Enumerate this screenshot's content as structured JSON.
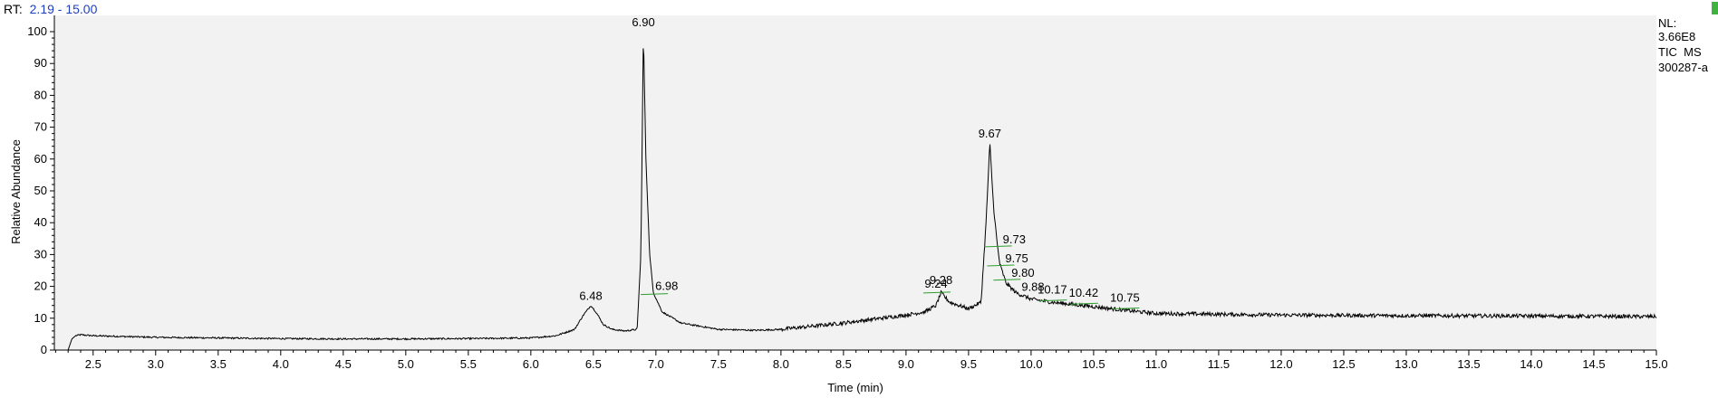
{
  "header": {
    "rt_label": "RT:",
    "rt_range": "2.19 - 15.00"
  },
  "info_box": {
    "line1": "NL:",
    "line2": "3.66E8",
    "line3": "TIC  MS",
    "line4": "300287-a"
  },
  "colors": {
    "plot_background": "#f2f2f2",
    "trace": "#000000",
    "integration_marker": "#2e9e2e",
    "rt_value": "#1f3fbf",
    "corner_marker": "#3fb33f"
  },
  "chart_data": {
    "type": "line",
    "title": "",
    "xlabel": "Time (min)",
    "ylabel": "Relative Abundance",
    "xlim": [
      2.19,
      15.0
    ],
    "ylim": [
      0,
      100
    ],
    "x_ticks": [
      "2.5",
      "3.0",
      "3.5",
      "4.0",
      "4.5",
      "5.0",
      "5.5",
      "6.0",
      "6.5",
      "7.0",
      "7.5",
      "8.0",
      "8.5",
      "9.0",
      "9.5",
      "10.0",
      "10.5",
      "11.0",
      "11.5",
      "12.0",
      "12.5",
      "13.0",
      "13.5",
      "14.0",
      "14.5",
      "15.0"
    ],
    "y_ticks": [
      "0",
      "10",
      "20",
      "30",
      "40",
      "50",
      "60",
      "70",
      "80",
      "90",
      "100"
    ],
    "grid": false,
    "legend": "none",
    "series": [
      {
        "x": [
          2.3,
          2.33,
          2.36,
          2.4,
          2.5,
          3.0,
          3.5,
          4.0,
          4.5,
          5.0,
          5.5,
          6.0,
          6.2,
          6.35,
          6.42,
          6.48,
          6.52,
          6.58,
          6.65,
          6.75,
          6.85,
          6.88,
          6.9,
          6.92,
          6.95,
          6.98,
          7.05,
          7.2,
          7.5,
          7.8,
          8.0,
          8.5,
          8.8,
          9.0,
          9.15,
          9.24,
          9.28,
          9.35,
          9.5,
          9.6,
          9.64,
          9.67,
          9.7,
          9.73,
          9.75,
          9.8,
          9.88,
          10.0,
          10.17,
          10.42,
          10.75,
          11.0,
          12.0,
          13.0,
          14.0,
          15.0
        ],
        "y": [
          0.0,
          3.5,
          4.5,
          4.8,
          4.5,
          4.0,
          3.8,
          3.6,
          3.5,
          3.5,
          3.6,
          3.8,
          4.5,
          6.5,
          11.0,
          14.0,
          12.0,
          8.0,
          6.5,
          6.0,
          6.5,
          30.0,
          100.0,
          60.0,
          30.0,
          18.0,
          12.0,
          8.5,
          6.5,
          6.2,
          6.5,
          8.5,
          10.0,
          11.0,
          12.0,
          14.0,
          18.0,
          15.0,
          13.0,
          15.0,
          40.0,
          65.0,
          45.0,
          33.0,
          27.0,
          21.0,
          18.0,
          16.0,
          15.0,
          14.0,
          12.5,
          11.5,
          11.0,
          10.8,
          10.7,
          10.5
        ]
      }
    ],
    "peaks": [
      {
        "label": "6.48",
        "x": 6.48,
        "y": 14.0
      },
      {
        "label": "6.90",
        "x": 6.9,
        "y": 100.0
      },
      {
        "label": "6.98",
        "x": 6.98,
        "y": 18.0
      },
      {
        "label": "9.24",
        "x": 9.24,
        "y": 18.5
      },
      {
        "label": "9.28",
        "x": 9.28,
        "y": 19.0
      },
      {
        "label": "9.67",
        "x": 9.67,
        "y": 65.0
      },
      {
        "label": "9.73",
        "x": 9.73,
        "y": 33.0
      },
      {
        "label": "9.75",
        "x": 9.75,
        "y": 27.0
      },
      {
        "label": "9.80",
        "x": 9.8,
        "y": 22.5
      },
      {
        "label": "9.88",
        "x": 9.88,
        "y": 18.0
      },
      {
        "label": "10.17",
        "x": 10.17,
        "y": 16.0
      },
      {
        "label": "10.42",
        "x": 10.42,
        "y": 15.0
      },
      {
        "label": "10.75",
        "x": 10.75,
        "y": 13.5
      }
    ]
  }
}
